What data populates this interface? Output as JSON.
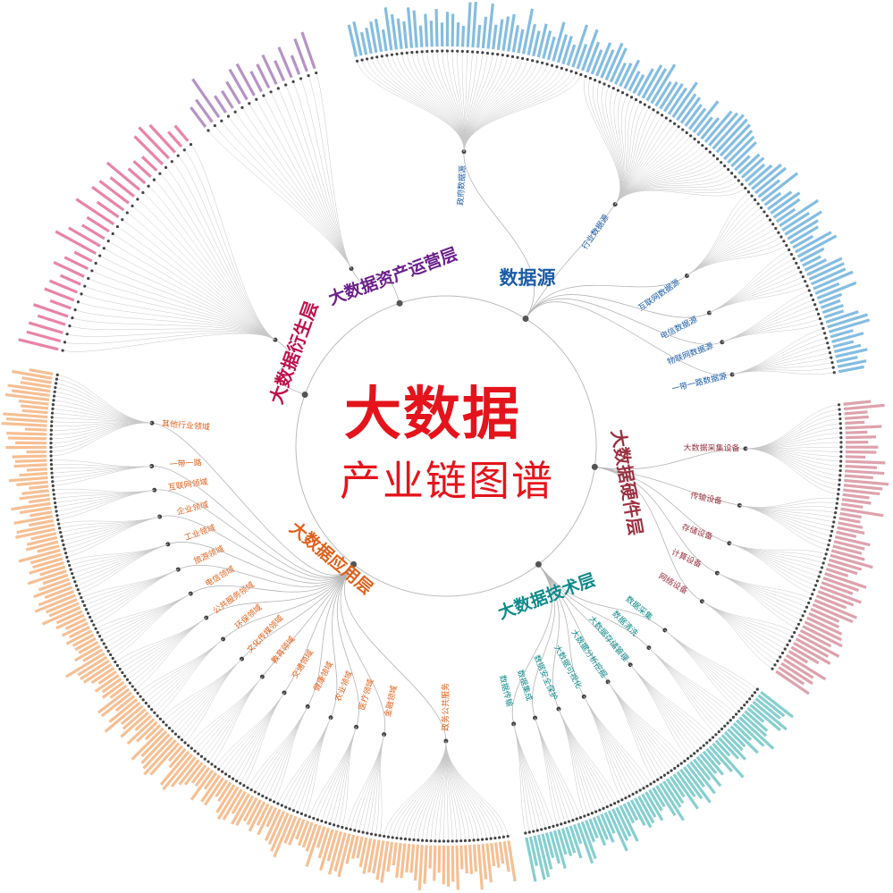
{
  "title": {
    "main": "大数据",
    "sub": "产业链图谱"
  },
  "categories": [
    {
      "id": "source",
      "label": "数据源",
      "color": "#1f86c8",
      "label_color": "#1a5ca8",
      "subs": [
        {
          "label": "政府数据源",
          "leaves": 46
        },
        {
          "label": "行业数据源",
          "leaves": 40
        },
        {
          "label": "互联网数据源",
          "leaves": 14
        },
        {
          "label": "电信数据源",
          "leaves": 9
        },
        {
          "label": "物联网数据源",
          "leaves": 8
        },
        {
          "label": "一带一路数据源",
          "leaves": 10
        }
      ]
    },
    {
      "id": "hardware",
      "label": "大数据硬件层",
      "color": "#c2566a",
      "label_color": "#9a3040",
      "subs": [
        {
          "label": "大数据采集设备",
          "leaves": 20
        },
        {
          "label": "传输设备",
          "leaves": 12
        },
        {
          "label": "存储设备",
          "leaves": 10
        },
        {
          "label": "计算设备",
          "leaves": 8
        },
        {
          "label": "网络设备",
          "leaves": 10
        }
      ]
    },
    {
      "id": "tech",
      "label": "大数据技术层",
      "color": "#22a8a8",
      "label_color": "#0f8a8a",
      "subs": [
        {
          "label": "数据采集",
          "leaves": 8
        },
        {
          "label": "数据清洗",
          "leaves": 8
        },
        {
          "label": "大数据存储管理",
          "leaves": 9
        },
        {
          "label": "大数据分析挖掘",
          "leaves": 10
        },
        {
          "label": "大数据可视化",
          "leaves": 9
        },
        {
          "label": "数据安全保护",
          "leaves": 10
        },
        {
          "label": "数据集成",
          "leaves": 7
        },
        {
          "label": "数据传输",
          "leaves": 8
        }
      ]
    },
    {
      "id": "application",
      "label": "大数据应用层",
      "color": "#ee8a3a",
      "label_color": "#e0601a",
      "subs": [
        {
          "label": "政务公共服务",
          "leaves": 30
        },
        {
          "label": "金融领域",
          "leaves": 9
        },
        {
          "label": "医疗领域",
          "leaves": 9
        },
        {
          "label": "农业领域",
          "leaves": 8
        },
        {
          "label": "健康领域",
          "leaves": 8
        },
        {
          "label": "交通领域",
          "leaves": 9
        },
        {
          "label": "教育领域",
          "leaves": 8
        },
        {
          "label": "文化传媒领域",
          "leaves": 9
        },
        {
          "label": "环保领域",
          "leaves": 8
        },
        {
          "label": "公共服务领域",
          "leaves": 9
        },
        {
          "label": "电信领域",
          "leaves": 9
        },
        {
          "label": "旅游领域",
          "leaves": 8
        },
        {
          "label": "工业领域",
          "leaves": 9
        },
        {
          "label": "企业领域",
          "leaves": 9
        },
        {
          "label": "互联网领域",
          "leaves": 8
        },
        {
          "label": "一带一路",
          "leaves": 7
        },
        {
          "label": "其他行业领域",
          "leaves": 20
        }
      ]
    },
    {
      "id": "derivative",
      "label": "大数据衍生层",
      "color": "#d61f5a",
      "label_color": "#c0104a",
      "subs": [
        {
          "label": "",
          "leaves": 30
        }
      ]
    },
    {
      "id": "asset",
      "label": "大数据资产运营层",
      "color": "#7a3a96",
      "label_color": "#6a1f8a",
      "subs": [
        {
          "label": "",
          "leaves": 16
        }
      ]
    }
  ]
}
